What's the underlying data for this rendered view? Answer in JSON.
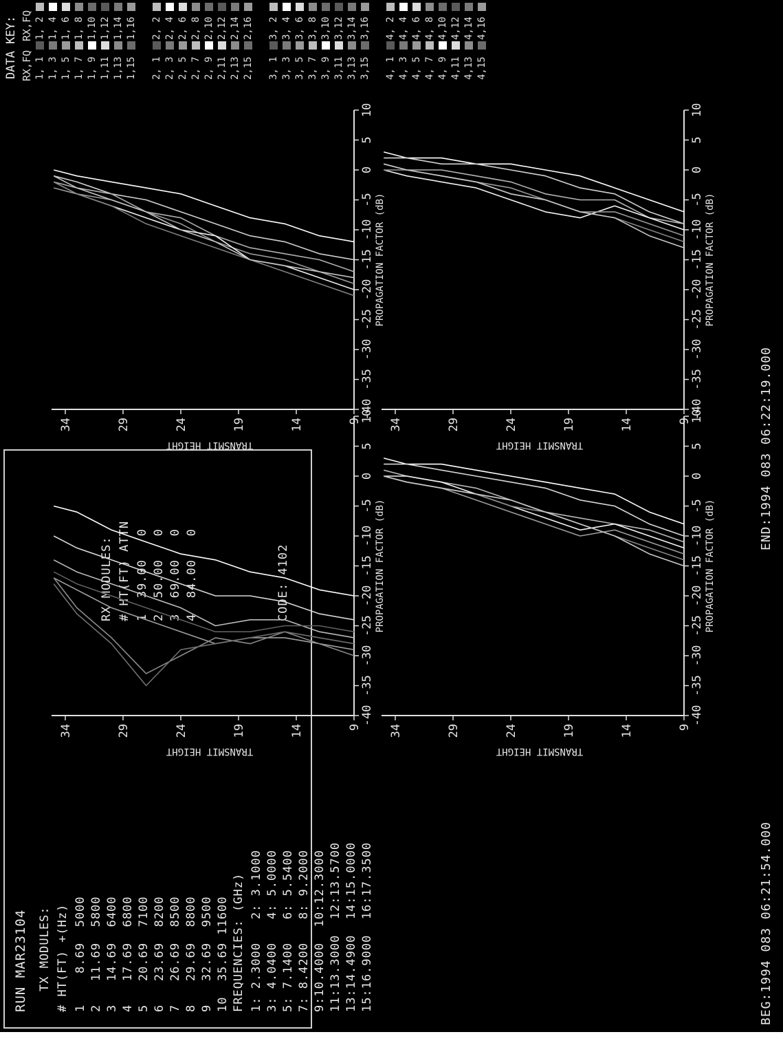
{
  "info_panel": {
    "run_title": "RUN MAR23104",
    "tx_heading": "TX MODULES:",
    "tx_columns": "# HT(FT) +(Hz)",
    "tx_rows": [
      "1    8.69  5000",
      "2   11.69  5800",
      "3   14.69  6400",
      "4   17.69  6800",
      "5   20.69  7100",
      "6   23.69  8200",
      "7   26.69  8500",
      "8   29.69  8800",
      "9   32.69  9500",
      "10  35.69 11600"
    ],
    "rx_heading": "RX MODULES:",
    "rx_columns": "# HT(FT) ATTN",
    "rx_rows": [
      "1  39.00   0",
      "2  50.00   0",
      "3  69.00   0",
      "4  84.00   0"
    ],
    "freq_heading": "FREQUENCIES: (GHz)",
    "freq_rows": [
      "1: 2.3000   2: 3.1000",
      "3: 4.0400   4: 5.0000",
      "5: 7.1400   6: 5.5400",
      "7: 8.4200   8: 9.2000",
      "9:10.4000  10:12.3000",
      "11:13.3000  12:13.5700",
      "13:14.4900  14:15.0000",
      "15:16.9000  16:17.3500"
    ],
    "code_label": "CODE: 4102"
  },
  "data_key": {
    "title": "DATA KEY:",
    "col_left": "RX,FQ",
    "col_right": "RX,FQ",
    "groups": [
      {
        "left": [
          "1, 1",
          "1, 3",
          "1, 5",
          "1, 7",
          "1, 9",
          "1,11",
          "1,13",
          "1,15"
        ],
        "right": [
          "1, 2",
          "1, 4",
          "1, 6",
          "1, 8",
          "1,10",
          "1,12",
          "1,14",
          "1,16"
        ]
      },
      {
        "left": [
          "2, 1",
          "2, 3",
          "2, 5",
          "2, 7",
          "2, 9",
          "2,11",
          "2,13",
          "2,15"
        ],
        "right": [
          "2, 2",
          "2, 4",
          "2, 6",
          "2, 8",
          "2,10",
          "2,12",
          "2,14",
          "2,16"
        ]
      },
      {
        "left": [
          "3, 1",
          "3, 3",
          "3, 5",
          "3, 7",
          "3, 9",
          "3,11",
          "3,13",
          "3,15"
        ],
        "right": [
          "3, 2",
          "3, 4",
          "3, 6",
          "3, 8",
          "3,10",
          "3,12",
          "3,14",
          "3,16"
        ]
      },
      {
        "left": [
          "4, 1",
          "4, 3",
          "4, 5",
          "4, 7",
          "4, 9",
          "4,11",
          "4,13",
          "4,15"
        ],
        "right": [
          "4, 2",
          "4, 4",
          "4, 6",
          "4, 8",
          "4,10",
          "4,12",
          "4,14",
          "4,16"
        ]
      }
    ],
    "shades": [
      "#5a5a5a",
      "#7a7a7a",
      "#9a9a9a",
      "#bdbdbd",
      "#ffffff",
      "#dcdcdc",
      "#8c8c8c",
      "#6c6c6c"
    ]
  },
  "footer": {
    "begin": "BEG:1994 083 06:21:54.000",
    "end": "END:1994 083 06:22:19.000"
  },
  "chart_data": [
    {
      "type": "line",
      "panel": 1,
      "xlabel": "PROPAGATION FACTOR (dB)",
      "ylabel": "TRANSMIT HEIGHT",
      "xlim": [
        -40,
        10
      ],
      "ylim": [
        9,
        34
      ],
      "xticks": [
        "-40",
        "-35",
        "-30",
        "-25",
        "-20",
        "-15",
        "-10",
        "-5",
        "0",
        "5",
        "10"
      ],
      "yticks": [
        "9",
        "14",
        "19",
        "24",
        "29",
        "34"
      ],
      "y": [
        9,
        12,
        15,
        18,
        21,
        24,
        27,
        30,
        33,
        35
      ],
      "series": [
        {
          "color": "#ffffff",
          "values": [
            -20,
            -19,
            -17,
            -16,
            -14,
            -13,
            -11,
            -9,
            -6,
            -5
          ]
        },
        {
          "color": "#d8d8d8",
          "values": [
            -24,
            -23,
            -21,
            -20,
            -20,
            -18,
            -16,
            -14,
            -12,
            -10
          ]
        },
        {
          "color": "#bcbcbc",
          "values": [
            -27,
            -26,
            -24,
            -24,
            -25,
            -22,
            -20,
            -18,
            -16,
            -14
          ]
        },
        {
          "color": "#a0a0a0",
          "values": [
            -29,
            -28,
            -27,
            -27,
            -28,
            -26,
            -24,
            -22,
            -19,
            -17
          ]
        },
        {
          "color": "#8a8a8a",
          "values": [
            -30,
            -28,
            -26,
            -28,
            -27,
            -30,
            -33,
            -27,
            -22,
            -17
          ]
        },
        {
          "color": "#707070",
          "values": [
            -28,
            -27,
            -26,
            -27,
            -28,
            -29,
            -35,
            -28,
            -23,
            -18
          ]
        },
        {
          "color": "#606060",
          "values": [
            -26,
            -25,
            -25,
            -26,
            -26,
            -24,
            -22,
            -20,
            -18,
            -16
          ]
        }
      ]
    },
    {
      "type": "line",
      "panel": 2,
      "xlabel": "PROPAGATION FACTOR (dB)",
      "ylabel": "TRANSMIT HEIGHT",
      "xlim": [
        -40,
        10
      ],
      "ylim": [
        9,
        34
      ],
      "xticks": [
        "-40",
        "-35",
        "-30",
        "-25",
        "-20",
        "-15",
        "-10",
        "-5",
        "0",
        "5",
        "10"
      ],
      "yticks": [
        "9",
        "14",
        "19",
        "24",
        "29",
        "34"
      ],
      "y": [
        9,
        12,
        15,
        18,
        21,
        24,
        27,
        30,
        33,
        35
      ],
      "series": [
        {
          "color": "#ffffff",
          "values": [
            -12,
            -11,
            -9,
            -8,
            -6,
            -4,
            -3,
            -2,
            -1,
            0
          ]
        },
        {
          "color": "#d0d0d0",
          "values": [
            -15,
            -14,
            -12,
            -11,
            -9,
            -7,
            -5,
            -4,
            -2,
            -1
          ]
        },
        {
          "color": "#b0b0b0",
          "values": [
            -17,
            -15,
            -14,
            -13,
            -11,
            -8,
            -7,
            -4,
            -3,
            -2
          ]
        },
        {
          "color": "#9a9a9a",
          "values": [
            -19,
            -17,
            -15,
            -14,
            -12,
            -9,
            -7,
            -5,
            -4,
            -3
          ]
        },
        {
          "color": "#f0f0f0",
          "values": [
            -20,
            -18,
            -16,
            -15,
            -11,
            -10,
            -8,
            -6,
            -4,
            -2
          ]
        },
        {
          "color": "#808080",
          "values": [
            -21,
            -19,
            -17,
            -15,
            -13,
            -11,
            -9,
            -6,
            -4,
            -2
          ]
        },
        {
          "color": "#c4c4c4",
          "values": [
            -18,
            -17,
            -16,
            -15,
            -12,
            -10,
            -7,
            -5,
            -3,
            -1
          ]
        }
      ]
    },
    {
      "type": "line",
      "panel": 3,
      "xlabel": "PROPAGATION FACTOR (dB)",
      "ylabel": "TRANSMIT HEIGHT",
      "xlim": [
        -40,
        10
      ],
      "ylim": [
        9,
        34
      ],
      "xticks": [
        "-40",
        "-35",
        "-30",
        "-25",
        "-20",
        "-15",
        "-10",
        "-5",
        "0",
        "5",
        "10"
      ],
      "yticks": [
        "9",
        "14",
        "19",
        "24",
        "29",
        "34"
      ],
      "y": [
        9,
        12,
        15,
        18,
        21,
        24,
        27,
        30,
        33,
        35
      ],
      "series": [
        {
          "color": "#ffffff",
          "values": [
            -8,
            -6,
            -3,
            -2,
            -1,
            0,
            1,
            2,
            2,
            3
          ]
        },
        {
          "color": "#d8d8d8",
          "values": [
            -10,
            -8,
            -5,
            -4,
            -2,
            -1,
            0,
            1,
            2,
            2
          ]
        },
        {
          "color": "#b8b8b8",
          "values": [
            -11,
            -9,
            -8,
            -7,
            -6,
            -4,
            -2,
            -1,
            0,
            1
          ]
        },
        {
          "color": "#f4f4f4",
          "values": [
            -12,
            -10,
            -8,
            -9,
            -7,
            -5,
            -3,
            -1,
            0,
            0
          ]
        },
        {
          "color": "#9c9c9c",
          "values": [
            -13,
            -11,
            -9,
            -10,
            -8,
            -6,
            -4,
            -2,
            -1,
            0
          ]
        },
        {
          "color": "#858585",
          "values": [
            -14,
            -12,
            -10,
            -8,
            -6,
            -5,
            -3,
            -2,
            -1,
            0
          ]
        },
        {
          "color": "#cacaca",
          "values": [
            -15,
            -13,
            -10,
            -8,
            -6,
            -4,
            -3,
            -2,
            -1,
            0
          ]
        }
      ]
    },
    {
      "type": "line",
      "panel": 4,
      "xlabel": "PROPAGATION FACTOR (dB)",
      "ylabel": "TRANSMIT HEIGHT",
      "xlim": [
        -40,
        10
      ],
      "ylim": [
        9,
        34
      ],
      "xticks": [
        "-40",
        "-35",
        "-30",
        "-25",
        "-20",
        "-15",
        "-10",
        "-5",
        "0",
        "5",
        "10"
      ],
      "yticks": [
        "9",
        "14",
        "19",
        "24",
        "29",
        "34"
      ],
      "y": [
        9,
        12,
        15,
        18,
        21,
        24,
        27,
        30,
        33,
        35
      ],
      "series": [
        {
          "color": "#ffffff",
          "values": [
            -7,
            -5,
            -3,
            -1,
            0,
            1,
            1,
            2,
            2,
            3
          ]
        },
        {
          "color": "#d4d4d4",
          "values": [
            -9,
            -7,
            -4,
            -3,
            -1,
            0,
            1,
            1,
            2,
            2
          ]
        },
        {
          "color": "#b4b4b4",
          "values": [
            -9,
            -8,
            -5,
            -5,
            -4,
            -2,
            -1,
            0,
            0,
            1
          ]
        },
        {
          "color": "#f2f2f2",
          "values": [
            -10,
            -8,
            -6,
            -8,
            -7,
            -5,
            -3,
            -2,
            -1,
            0
          ]
        },
        {
          "color": "#989898",
          "values": [
            -11,
            -9,
            -7,
            -7,
            -5,
            -3,
            -2,
            -1,
            0,
            0
          ]
        },
        {
          "color": "#828282",
          "values": [
            -12,
            -10,
            -8,
            -7,
            -5,
            -4,
            -2,
            -1,
            0,
            0
          ]
        },
        {
          "color": "#c8c8c8",
          "values": [
            -13,
            -11,
            -8,
            -7,
            -5,
            -4,
            -2,
            -1,
            0,
            1
          ]
        }
      ]
    }
  ]
}
